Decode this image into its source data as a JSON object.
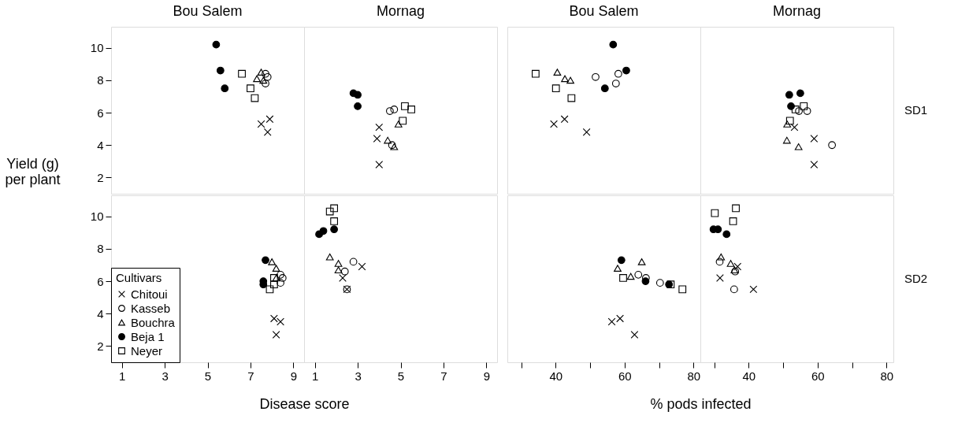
{
  "chart_data": [
    {
      "type": "scatter",
      "title": "Bou Salem",
      "ylabel": "Yield (g) per plant",
      "xlim": [
        0.5,
        9.5
      ],
      "ylim": [
        1,
        11.3
      ],
      "xticks": [
        1,
        3,
        5,
        7,
        9
      ],
      "yticks": [
        2,
        4,
        6,
        8,
        10
      ],
      "tick_labels": "y",
      "grid": false,
      "legend": false,
      "series": [
        {
          "color": "#000000",
          "marker": "cross",
          "x": [
            7.9,
            7.5,
            7.8
          ],
          "values": [
            5.6,
            5.3,
            4.8
          ]
        },
        {
          "color": "#000000",
          "marker": "circle",
          "x": [
            7.7,
            7.8,
            7.7
          ],
          "values": [
            8.4,
            8.2,
            7.8
          ]
        },
        {
          "color": "#000000",
          "marker": "triangle",
          "x": [
            7.5,
            7.3,
            7.6
          ],
          "values": [
            8.5,
            8.1,
            8.0
          ]
        },
        {
          "color": "#000000",
          "marker": "circle",
          "x": [
            5.4,
            5.6,
            5.8
          ],
          "values": [
            10.2,
            8.6,
            7.5
          ]
        },
        {
          "color": "#000000",
          "marker": "square",
          "x": [
            6.6,
            7.0,
            7.2
          ],
          "values": [
            8.4,
            7.5,
            6.9
          ]
        }
      ]
    },
    {
      "type": "scatter",
      "title": "Mornag",
      "xlim": [
        0.5,
        9.5
      ],
      "ylim": [
        1,
        11.3
      ],
      "xticks": [
        1,
        3,
        5,
        7,
        9
      ],
      "yticks": [
        2,
        4,
        6,
        8,
        10
      ],
      "tick_labels": false,
      "grid": false,
      "legend": false,
      "series": [
        {
          "color": "#000000",
          "marker": "cross",
          "x": [
            4.0,
            3.9,
            4.0
          ],
          "values": [
            5.1,
            4.4,
            2.8
          ]
        },
        {
          "color": "#000000",
          "marker": "circle",
          "x": [
            4.5,
            4.7,
            4.6
          ],
          "values": [
            6.1,
            6.2,
            4.0
          ]
        },
        {
          "color": "#000000",
          "marker": "triangle",
          "x": [
            4.9,
            4.4,
            4.7
          ],
          "values": [
            5.3,
            4.3,
            3.9
          ]
        },
        {
          "color": "#000000",
          "marker": "circle",
          "x": [
            2.8,
            3.0,
            3.0
          ],
          "values": [
            7.2,
            7.1,
            6.4
          ]
        },
        {
          "color": "#000000",
          "marker": "square",
          "x": [
            5.2,
            5.5,
            5.1
          ],
          "values": [
            6.4,
            6.2,
            5.5
          ]
        }
      ]
    },
    {
      "type": "scatter",
      "title": "Bou Salem",
      "xlim": [
        26,
        82
      ],
      "ylim": [
        1,
        11.3
      ],
      "yticks": [
        2,
        4,
        6,
        8,
        10
      ],
      "tick_labels": false,
      "grid": false,
      "legend": false,
      "series": [
        {
          "color": "#000000",
          "marker": "cross",
          "x": [
            39.5,
            42.6,
            49.0
          ],
          "values": [
            5.3,
            5.6,
            4.8
          ]
        },
        {
          "color": "#000000",
          "marker": "circle",
          "x": [
            51.6,
            58.2,
            57.5
          ],
          "values": [
            8.2,
            8.4,
            7.8
          ]
        },
        {
          "color": "#000000",
          "marker": "triangle",
          "x": [
            40.5,
            42.7,
            44.3
          ],
          "values": [
            8.5,
            8.1,
            8.0
          ]
        },
        {
          "color": "#000000",
          "marker": "circle",
          "x": [
            56.7,
            60.5,
            54.3
          ],
          "values": [
            10.2,
            8.6,
            7.5
          ]
        },
        {
          "color": "#000000",
          "marker": "square",
          "x": [
            34.2,
            40.1,
            44.6
          ],
          "values": [
            8.4,
            7.5,
            6.9
          ]
        }
      ]
    },
    {
      "type": "scatter",
      "title": "Mornag",
      "y2label": "SD1",
      "xlim": [
        26,
        82
      ],
      "ylim": [
        1,
        11.3
      ],
      "yticks": [
        2,
        4,
        6,
        8,
        10
      ],
      "tick_labels": false,
      "grid": false,
      "legend": false,
      "series": [
        {
          "color": "#000000",
          "marker": "cross",
          "x": [
            53.3,
            59.0,
            59.0
          ],
          "values": [
            5.1,
            4.4,
            2.8
          ]
        },
        {
          "color": "#000000",
          "marker": "circle",
          "x": [
            54.6,
            57.0,
            64.2
          ],
          "values": [
            6.1,
            6.1,
            4.0
          ]
        },
        {
          "color": "#000000",
          "marker": "triangle",
          "x": [
            51.2,
            51.1,
            54.5
          ],
          "values": [
            5.3,
            4.3,
            3.9
          ]
        },
        {
          "color": "#000000",
          "marker": "circle",
          "x": [
            51.8,
            55.0,
            52.3
          ],
          "values": [
            7.1,
            7.2,
            6.4
          ]
        },
        {
          "color": "#000000",
          "marker": "square",
          "x": [
            56.0,
            53.6,
            52.0
          ],
          "values": [
            6.4,
            6.2,
            5.5
          ]
        }
      ]
    },
    {
      "type": "scatter",
      "xlabel": "Disease score",
      "legend_title": "Cultivars",
      "xlim": [
        0.5,
        9.5
      ],
      "ylim": [
        1,
        11.3
      ],
      "xticks": [
        1,
        3,
        5,
        7,
        9
      ],
      "yticks": [
        2,
        4,
        6,
        8,
        10
      ],
      "grid": false,
      "legend": "bottom left",
      "series": [
        {
          "name": "Chitoui",
          "color": "#000000",
          "marker": "cross",
          "x": [
            8.1,
            8.4,
            8.2
          ],
          "values": [
            3.7,
            3.5,
            2.7
          ]
        },
        {
          "name": "Kasseb",
          "color": "#000000",
          "marker": "circle",
          "x": [
            8.4,
            8.5,
            8.4
          ],
          "values": [
            6.4,
            6.2,
            5.9
          ]
        },
        {
          "name": "Bouchra",
          "color": "#000000",
          "marker": "triangle",
          "x": [
            8.0,
            8.2,
            8.2
          ],
          "values": [
            7.2,
            6.8,
            6.2
          ]
        },
        {
          "name": "Beja 1",
          "color": "#000000",
          "marker": "circle",
          "x": [
            7.7,
            7.6,
            7.6
          ],
          "values": [
            7.3,
            6.0,
            5.8
          ]
        },
        {
          "name": "Neyer",
          "color": "#000000",
          "marker": "square",
          "x": [
            8.1,
            8.1,
            7.9
          ],
          "values": [
            6.2,
            5.8,
            5.5
          ]
        }
      ]
    },
    {
      "type": "scatter",
      "xlim": [
        0.5,
        9.5
      ],
      "ylim": [
        1,
        11.3
      ],
      "xticks": [
        1,
        3,
        5,
        7,
        9
      ],
      "yticks": [
        2,
        4,
        6,
        8,
        10
      ],
      "tick_labels": "x",
      "grid": false,
      "legend": false,
      "series": [
        {
          "color": "#000000",
          "marker": "cross",
          "x": [
            3.2,
            2.3,
            2.5
          ],
          "values": [
            6.9,
            6.2,
            5.5
          ]
        },
        {
          "color": "#000000",
          "marker": "circle",
          "x": [
            2.8,
            2.4,
            2.5
          ],
          "values": [
            7.2,
            6.6,
            5.5
          ]
        },
        {
          "color": "#000000",
          "marker": "triangle",
          "x": [
            1.7,
            2.1,
            2.1
          ],
          "values": [
            7.5,
            7.1,
            6.7
          ]
        },
        {
          "color": "#000000",
          "marker": "circle",
          "x": [
            1.2,
            1.4,
            1.9
          ],
          "values": [
            8.9,
            9.1,
            9.2
          ]
        },
        {
          "color": "#000000",
          "marker": "square",
          "x": [
            1.7,
            1.9,
            1.9
          ],
          "values": [
            10.3,
            10.5,
            9.7
          ]
        }
      ]
    },
    {
      "type": "scatter",
      "xlabel": "% pods infected",
      "xlim": [
        26,
        82
      ],
      "ylim": [
        1,
        11.3
      ],
      "xticks": [
        {
          "value": 30,
          "label": null
        },
        40,
        {
          "value": 50,
          "label": null
        },
        60,
        {
          "value": 70,
          "label": null
        },
        80
      ],
      "yticks": [
        2,
        4,
        6,
        8,
        10
      ],
      "tick_labels": "x",
      "grid": false,
      "legend": false,
      "series": [
        {
          "color": "#000000",
          "marker": "cross",
          "x": [
            56.3,
            58.7,
            62.9
          ],
          "values": [
            3.5,
            3.7,
            2.7
          ]
        },
        {
          "color": "#000000",
          "marker": "circle",
          "x": [
            64.0,
            66.2,
            70.3
          ],
          "values": [
            6.4,
            6.2,
            5.9
          ]
        },
        {
          "color": "#000000",
          "marker": "triangle",
          "x": [
            65.0,
            58.0,
            61.8
          ],
          "values": [
            7.2,
            6.8,
            6.3
          ]
        },
        {
          "color": "#000000",
          "marker": "circle",
          "x": [
            59.1,
            66.1,
            72.9
          ],
          "values": [
            7.3,
            6.0,
            5.8
          ]
        },
        {
          "color": "#000000",
          "marker": "square",
          "x": [
            59.6,
            73.4,
            76.8
          ],
          "values": [
            6.2,
            5.8,
            5.5
          ]
        }
      ]
    },
    {
      "type": "scatter",
      "y2label": "SD2",
      "xlim": [
        26,
        82
      ],
      "ylim": [
        1,
        11.3
      ],
      "xticks": [
        {
          "value": 30,
          "label": null
        },
        40,
        {
          "value": 50,
          "label": null
        },
        60,
        {
          "value": 70,
          "label": null
        },
        80
      ],
      "yticks": [
        2,
        4,
        6,
        8,
        10
      ],
      "tick_labels": "x",
      "grid": false,
      "legend": false,
      "series": [
        {
          "color": "#000000",
          "marker": "cross",
          "x": [
            36.8,
            31.7,
            41.4
          ],
          "values": [
            6.9,
            6.2,
            5.5
          ]
        },
        {
          "color": "#000000",
          "marker": "circle",
          "x": [
            31.6,
            36.1,
            35.8
          ],
          "values": [
            7.2,
            6.6,
            5.5
          ]
        },
        {
          "color": "#000000",
          "marker": "triangle",
          "x": [
            32.0,
            34.8,
            35.9
          ],
          "values": [
            7.5,
            7.1,
            6.7
          ]
        },
        {
          "color": "#000000",
          "marker": "circle",
          "x": [
            29.8,
            31.1,
            33.6
          ],
          "values": [
            9.2,
            9.2,
            8.9
          ]
        },
        {
          "color": "#000000",
          "marker": "square",
          "x": [
            30.2,
            36.3,
            35.5
          ],
          "values": [
            10.2,
            10.5,
            9.7
          ]
        }
      ]
    }
  ]
}
